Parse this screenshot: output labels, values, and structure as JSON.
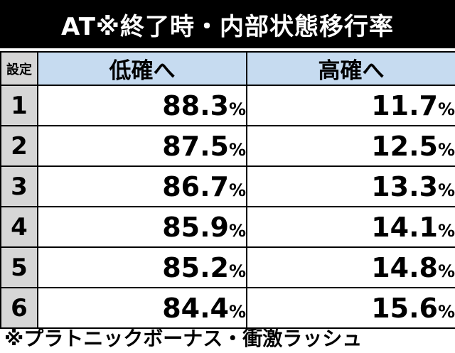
{
  "title": "AT※終了時・内部状態移行率",
  "table": {
    "header": {
      "setting_label": "設定",
      "columns": [
        "低確へ",
        "高確へ"
      ]
    },
    "rows": [
      {
        "setting": "1",
        "values": [
          "88.3",
          "11.7"
        ]
      },
      {
        "setting": "2",
        "values": [
          "87.5",
          "12.5"
        ]
      },
      {
        "setting": "3",
        "values": [
          "86.7",
          "13.3"
        ]
      },
      {
        "setting": "4",
        "values": [
          "85.9",
          "14.1"
        ]
      },
      {
        "setting": "5",
        "values": [
          "85.2",
          "14.8"
        ]
      },
      {
        "setting": "6",
        "values": [
          "84.4",
          "15.6"
        ]
      }
    ],
    "unit": "%"
  },
  "footnote": "※プラトニックボーナス・衝激ラッシュ",
  "colors": {
    "title_bg": "#000000",
    "title_text": "#ffffff",
    "header_bg": "#c6dbf0",
    "setting_bg": "#d6d6d6",
    "border": "#000000"
  }
}
